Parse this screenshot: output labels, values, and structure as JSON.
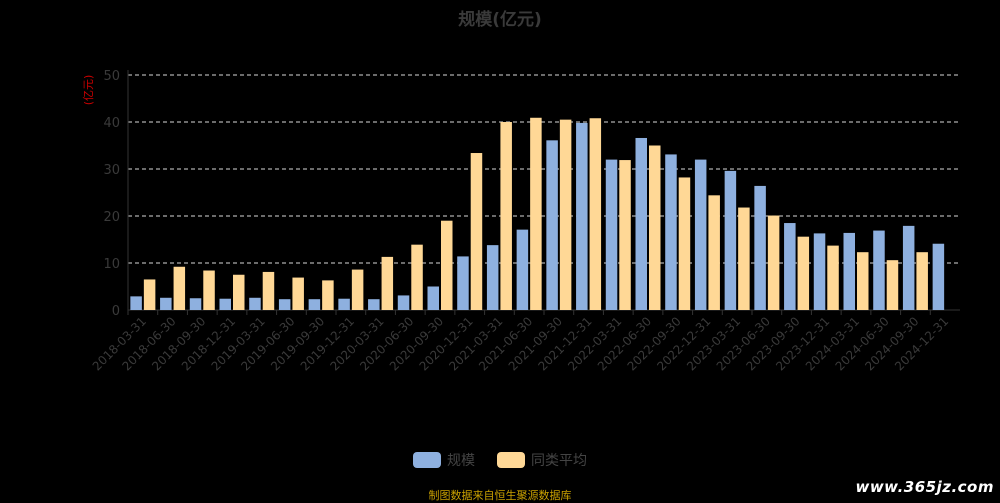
{
  "chart_data": {
    "type": "bar",
    "title": "规模(亿元)",
    "ylabel": "(亿元)",
    "ylim": [
      0,
      50
    ],
    "yticks": [
      0,
      10,
      20,
      30,
      40,
      50
    ],
    "grid": true,
    "legend_position": "bottom",
    "categories": [
      "2018-03-31",
      "2018-06-30",
      "2018-09-30",
      "2018-12-31",
      "2019-03-31",
      "2019-06-30",
      "2019-09-30",
      "2019-12-31",
      "2020-03-31",
      "2020-06-30",
      "2020-09-30",
      "2020-12-31",
      "2021-03-31",
      "2021-06-30",
      "2021-09-30",
      "2021-12-31",
      "2022-03-31",
      "2022-06-30",
      "2022-09-30",
      "2022-12-31",
      "2023-03-31",
      "2023-06-30",
      "2023-09-30",
      "2023-12-31",
      "2024-03-31",
      "2024-06-30",
      "2024-09-30",
      "2024-12-31"
    ],
    "series": [
      {
        "name": "规模",
        "color": "#8eb0df",
        "values": [
          2.9,
          2.6,
          2.5,
          2.4,
          2.6,
          2.3,
          2.3,
          2.4,
          2.3,
          3.1,
          5.0,
          11.4,
          13.8,
          17.1,
          36.1,
          39.8,
          32.0,
          36.6,
          33.1,
          32.0,
          29.6,
          26.4,
          18.5,
          16.3,
          16.4,
          16.9,
          17.9,
          14.1
        ]
      },
      {
        "name": "同类平均",
        "color": "#ffd896",
        "values": [
          6.5,
          9.2,
          8.4,
          7.5,
          8.1,
          6.9,
          6.3,
          8.6,
          11.3,
          13.9,
          19.0,
          33.4,
          40.0,
          40.9,
          40.5,
          40.8,
          31.9,
          35.0,
          28.2,
          24.4,
          21.8,
          20.1,
          15.6,
          13.7,
          12.3,
          10.6,
          12.3,
          null
        ]
      }
    ]
  },
  "footer": {
    "source_note": "制图数据来自恒生聚源数据库",
    "watermark": "www.365jz.com"
  }
}
